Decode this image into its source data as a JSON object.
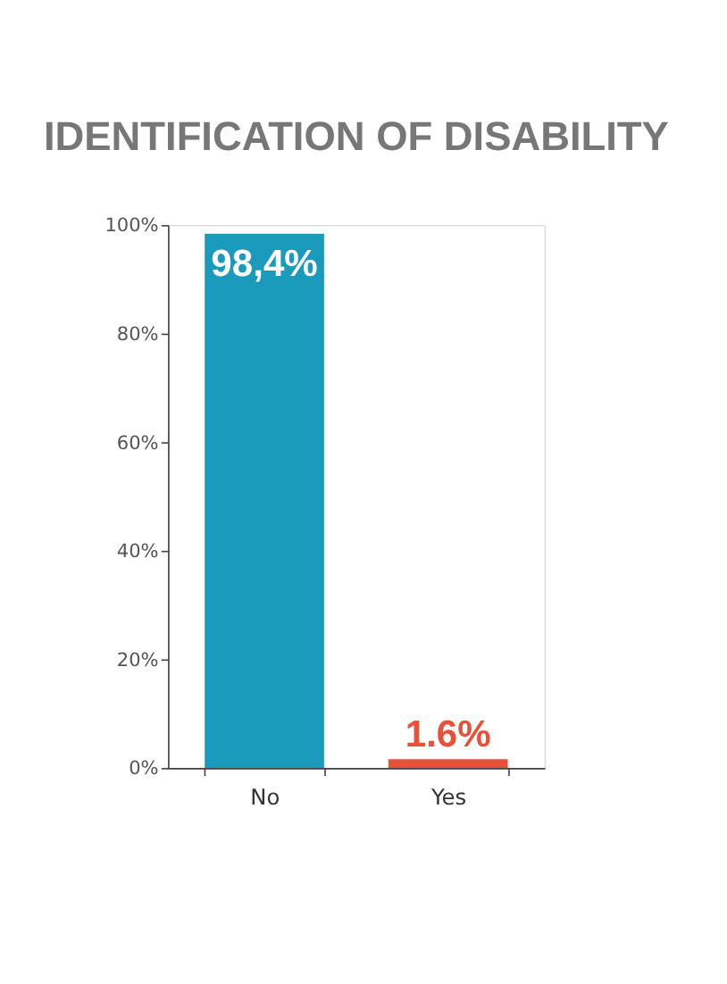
{
  "chart_data": {
    "type": "bar",
    "title": "IDENTIFICATION OF DISABILITY",
    "categories": [
      "No",
      "Yes"
    ],
    "values": [
      98.4,
      1.6
    ],
    "colors": [
      "#1a9bbb",
      "#e8503a"
    ],
    "value_labels": [
      "98,4%",
      "1.6%"
    ],
    "ylim": [
      0,
      100
    ],
    "yticks": [
      {
        "value": 0,
        "label": "0%"
      },
      {
        "value": 20,
        "label": "20%"
      },
      {
        "value": 40,
        "label": "40%"
      },
      {
        "value": 60,
        "label": "60%"
      },
      {
        "value": 80,
        "label": "80%"
      },
      {
        "value": 100,
        "label": "100%"
      }
    ],
    "grid": false
  }
}
